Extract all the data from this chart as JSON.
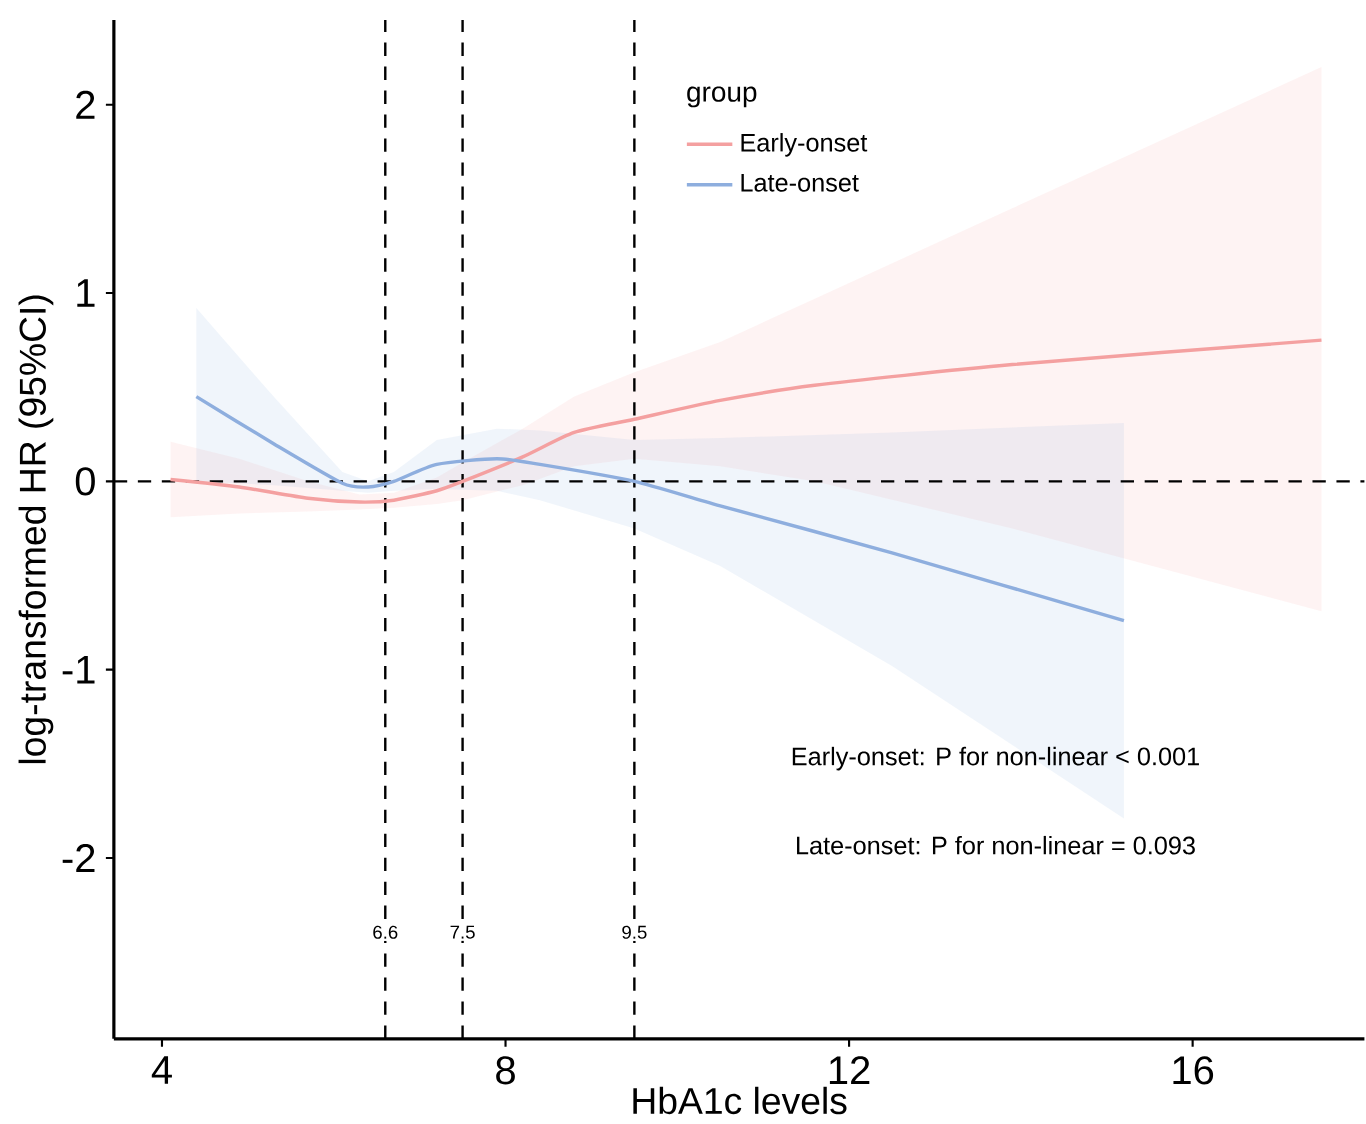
{
  "chart_data": {
    "type": "line",
    "xlabel": "HbA1c levels",
    "ylabel": "log-transformed HR (95%CI)",
    "legend_title": "group",
    "legend": "top",
    "xlim": [
      3.44,
      18.0
    ],
    "ylim": [
      -2.96,
      2.45
    ],
    "xticks": [
      4,
      8,
      12,
      16
    ],
    "yticks": [
      -2,
      -1,
      0,
      1,
      2
    ],
    "grid": false,
    "series": [
      {
        "name": "Early-onset",
        "color": "#f4a0a0",
        "x": [
          4.1,
          4.9,
          5.7,
          6.3,
          6.7,
          7.2,
          7.5,
          8.2,
          8.8,
          9.5,
          10.5,
          11.6,
          13.9,
          17.5
        ],
        "values": [
          0.01,
          -0.03,
          -0.09,
          -0.11,
          -0.1,
          -0.05,
          0.0,
          0.13,
          0.26,
          0.33,
          0.43,
          0.51,
          0.62,
          0.75
        ],
        "lower": [
          -0.19,
          -0.17,
          -0.16,
          -0.15,
          -0.14,
          -0.12,
          -0.1,
          -0.02,
          0.08,
          0.12,
          0.08,
          0.0,
          -0.25,
          -0.69
        ],
        "upper": [
          0.21,
          0.12,
          0.0,
          -0.07,
          -0.06,
          0.02,
          0.1,
          0.28,
          0.45,
          0.58,
          0.74,
          0.97,
          1.45,
          2.2
        ]
      },
      {
        "name": "Late-onset",
        "color": "#8eaede",
        "x": [
          4.4,
          5.3,
          6.1,
          6.4,
          6.7,
          7.2,
          7.9,
          8.4,
          9.5,
          10.5,
          12.5,
          15.2
        ],
        "values": [
          0.45,
          0.2,
          -0.01,
          -0.03,
          0.0,
          0.09,
          0.12,
          0.09,
          0.0,
          -0.13,
          -0.38,
          -0.74
        ],
        "lower": [
          0.0,
          -0.02,
          -0.05,
          -0.06,
          -0.05,
          -0.04,
          -0.05,
          -0.1,
          -0.25,
          -0.45,
          -0.98,
          -1.79
        ],
        "upper": [
          0.92,
          0.45,
          0.05,
          0.0,
          0.05,
          0.22,
          0.28,
          0.27,
          0.22,
          0.23,
          0.26,
          0.31
        ]
      }
    ],
    "ref_lines": [
      {
        "axis": "x",
        "value": 6.6,
        "label": "6.6",
        "line_style": "dashed",
        "color": "#000000"
      },
      {
        "axis": "x",
        "value": 7.5,
        "label": "7.5",
        "line_style": "dashed",
        "color": "#000000"
      },
      {
        "axis": "x",
        "value": 9.5,
        "label": "9.5",
        "line_style": "dashed",
        "color": "#000000"
      },
      {
        "axis": "y",
        "value": 0,
        "line_style": "dashed",
        "color": "#000000"
      }
    ],
    "annotations": [
      "Early-onset: P for non-linear < 0.001",
      "Late-onset: P for non-linear = 0.093"
    ]
  }
}
